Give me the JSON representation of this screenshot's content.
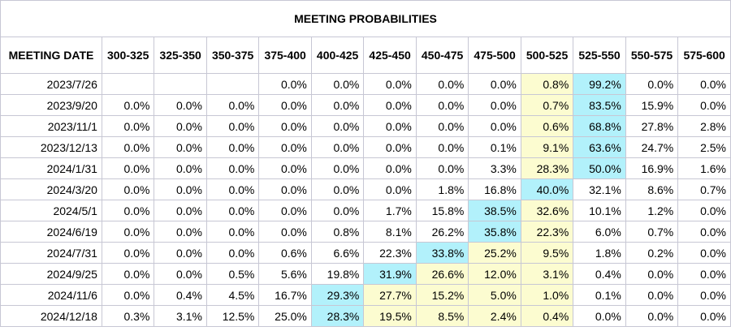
{
  "title": "MEETING PROBABILITIES",
  "columns": [
    "MEETING DATE",
    "300-325",
    "325-350",
    "350-375",
    "375-400",
    "400-425",
    "425-450",
    "450-475",
    "475-500",
    "500-525",
    "525-550",
    "550-575",
    "575-600"
  ],
  "highlight_colors": {
    "yellow": "#fcfcd0",
    "cyan": "#b2f1fb"
  },
  "rows": [
    {
      "date": "2023/7/26",
      "values": [
        "",
        "",
        "",
        "0.0%",
        "0.0%",
        "0.0%",
        "0.0%",
        "0.0%",
        "0.8%",
        "99.2%",
        "0.0%",
        "0.0%"
      ],
      "hl": [
        "",
        "",
        "",
        "",
        "",
        "",
        "",
        "",
        "yellow",
        "cyan",
        "",
        ""
      ]
    },
    {
      "date": "2023/9/20",
      "values": [
        "0.0%",
        "0.0%",
        "0.0%",
        "0.0%",
        "0.0%",
        "0.0%",
        "0.0%",
        "0.0%",
        "0.7%",
        "83.5%",
        "15.9%",
        "0.0%"
      ],
      "hl": [
        "",
        "",
        "",
        "",
        "",
        "",
        "",
        "",
        "yellow",
        "cyan",
        "",
        ""
      ]
    },
    {
      "date": "2023/11/1",
      "values": [
        "0.0%",
        "0.0%",
        "0.0%",
        "0.0%",
        "0.0%",
        "0.0%",
        "0.0%",
        "0.0%",
        "0.6%",
        "68.8%",
        "27.8%",
        "2.8%"
      ],
      "hl": [
        "",
        "",
        "",
        "",
        "",
        "",
        "",
        "",
        "yellow",
        "cyan",
        "",
        ""
      ]
    },
    {
      "date": "2023/12/13",
      "values": [
        "0.0%",
        "0.0%",
        "0.0%",
        "0.0%",
        "0.0%",
        "0.0%",
        "0.0%",
        "0.1%",
        "9.1%",
        "63.6%",
        "24.7%",
        "2.5%"
      ],
      "hl": [
        "",
        "",
        "",
        "",
        "",
        "",
        "",
        "",
        "yellow",
        "cyan",
        "",
        ""
      ]
    },
    {
      "date": "2024/1/31",
      "values": [
        "0.0%",
        "0.0%",
        "0.0%",
        "0.0%",
        "0.0%",
        "0.0%",
        "0.0%",
        "3.3%",
        "28.3%",
        "50.0%",
        "16.9%",
        "1.6%"
      ],
      "hl": [
        "",
        "",
        "",
        "",
        "",
        "",
        "",
        "",
        "yellow",
        "cyan",
        "",
        ""
      ]
    },
    {
      "date": "2024/3/20",
      "values": [
        "0.0%",
        "0.0%",
        "0.0%",
        "0.0%",
        "0.0%",
        "0.0%",
        "1.8%",
        "16.8%",
        "40.0%",
        "32.1%",
        "8.6%",
        "0.7%"
      ],
      "hl": [
        "",
        "",
        "",
        "",
        "",
        "",
        "",
        "",
        "cyan",
        "",
        "",
        ""
      ]
    },
    {
      "date": "2024/5/1",
      "values": [
        "0.0%",
        "0.0%",
        "0.0%",
        "0.0%",
        "0.0%",
        "1.7%",
        "15.8%",
        "38.5%",
        "32.6%",
        "10.1%",
        "1.2%",
        "0.0%"
      ],
      "hl": [
        "",
        "",
        "",
        "",
        "",
        "",
        "",
        "cyan",
        "yellow",
        "",
        "",
        ""
      ]
    },
    {
      "date": "2024/6/19",
      "values": [
        "0.0%",
        "0.0%",
        "0.0%",
        "0.0%",
        "0.8%",
        "8.1%",
        "26.2%",
        "35.8%",
        "22.3%",
        "6.0%",
        "0.7%",
        "0.0%"
      ],
      "hl": [
        "",
        "",
        "",
        "",
        "",
        "",
        "",
        "cyan",
        "yellow",
        "",
        "",
        ""
      ]
    },
    {
      "date": "2024/7/31",
      "values": [
        "0.0%",
        "0.0%",
        "0.0%",
        "0.6%",
        "6.6%",
        "22.3%",
        "33.8%",
        "25.2%",
        "9.5%",
        "1.8%",
        "0.2%",
        "0.0%"
      ],
      "hl": [
        "",
        "",
        "",
        "",
        "",
        "",
        "cyan",
        "yellow",
        "yellow",
        "",
        "",
        ""
      ]
    },
    {
      "date": "2024/9/25",
      "values": [
        "0.0%",
        "0.0%",
        "0.5%",
        "5.6%",
        "19.8%",
        "31.9%",
        "26.6%",
        "12.0%",
        "3.1%",
        "0.4%",
        "0.0%",
        "0.0%"
      ],
      "hl": [
        "",
        "",
        "",
        "",
        "",
        "cyan",
        "yellow",
        "yellow",
        "yellow",
        "",
        "",
        ""
      ]
    },
    {
      "date": "2024/11/6",
      "values": [
        "0.0%",
        "0.4%",
        "4.5%",
        "16.7%",
        "29.3%",
        "27.7%",
        "15.2%",
        "5.0%",
        "1.0%",
        "0.1%",
        "0.0%",
        "0.0%"
      ],
      "hl": [
        "",
        "",
        "",
        "",
        "cyan",
        "yellow",
        "yellow",
        "yellow",
        "yellow",
        "",
        "",
        ""
      ]
    },
    {
      "date": "2024/12/18",
      "values": [
        "0.3%",
        "3.1%",
        "12.5%",
        "25.0%",
        "28.3%",
        "19.5%",
        "8.5%",
        "2.4%",
        "0.4%",
        "0.0%",
        "0.0%",
        "0.0%"
      ],
      "hl": [
        "",
        "",
        "",
        "",
        "cyan",
        "yellow",
        "yellow",
        "yellow",
        "yellow",
        "",
        "",
        ""
      ]
    }
  ]
}
